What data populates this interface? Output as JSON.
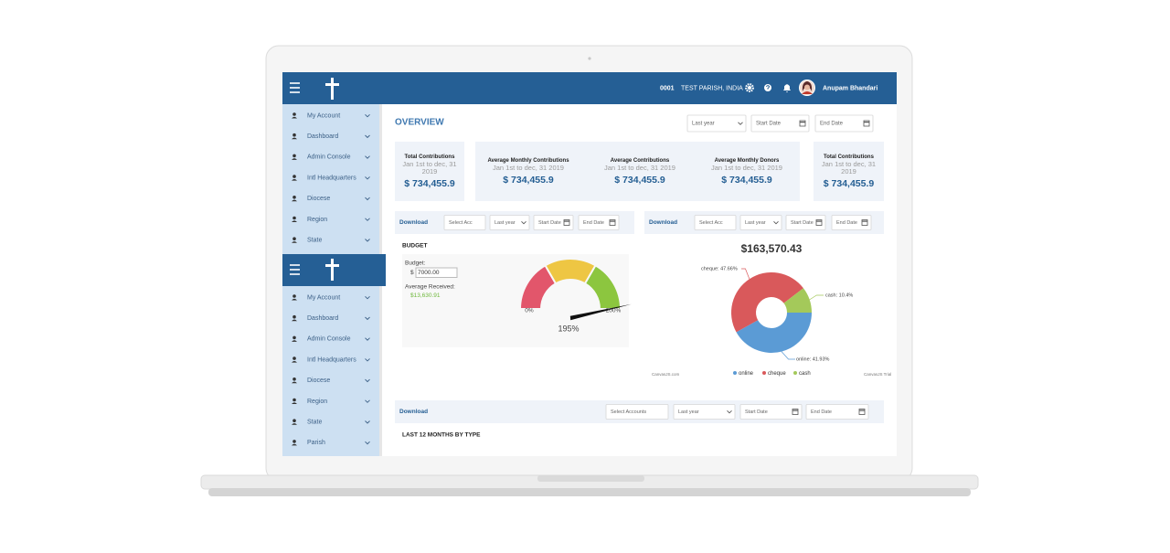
{
  "header": {
    "parish_code": "0001",
    "parish_name": "TEST PARISH, INDIA",
    "user": "Anupam Bhandari"
  },
  "sidebar": {
    "menu_1": [
      "My Account",
      "Dashboard",
      "Admin Console",
      "Intl Headquarters",
      "Diocese",
      "Region",
      "State"
    ],
    "menu_2": [
      "My Account",
      "Dashboard",
      "Admin Console",
      "Intl Headquarters",
      "Diocese",
      "Region",
      "State",
      "Parish"
    ]
  },
  "overview": {
    "title": "OVERVIEW",
    "period": "Last year",
    "start_date": "Start Date",
    "end_date": "End Date"
  },
  "stats": [
    {
      "title": "Total Contributions",
      "period": "Jan 1st to dec, 31 2019",
      "value": "$ 734,455.9"
    },
    {
      "title": "Average Monthly Contributions",
      "period": "Jan 1st to dec, 31 2019",
      "value": "$ 734,455.9"
    },
    {
      "title": "Average Contributions",
      "period": "Jan 1st to dec, 31 2019",
      "value": "$ 734,455.9"
    },
    {
      "title": "Average Monthly Donors",
      "period": "Jan 1st to dec, 31 2019",
      "value": "$ 734,455.9"
    },
    {
      "title": "Total Contributions",
      "period": "Jan 1st to dec, 31 2019",
      "value": "$ 734,455.9"
    }
  ],
  "filters": [
    {
      "download": "Download",
      "account": "Select Acc",
      "period": "Last year",
      "start": "Start Date",
      "end": "End Date"
    },
    {
      "download": "Download",
      "account": "Select Acc",
      "period": "Last year",
      "start": "Start Date",
      "end": "End Date"
    },
    {
      "download": "Download",
      "account": "Select Accounts",
      "period": "Last year",
      "start": "Start Date",
      "end": "End Date"
    }
  ],
  "budget": {
    "title": "BUDGET",
    "budget_label": "Budget:",
    "currency": "$",
    "budget_value": "7000.00",
    "received_label": "Average Received:",
    "received_value": "$13,630.91"
  },
  "gauge": {
    "type": "gauge",
    "value": 195,
    "value_label": "195%",
    "min": {
      "value": 0,
      "label": "0%"
    },
    "max": {
      "value": 200,
      "label": "200%"
    },
    "band_colors": [
      "#e2566b",
      "#eec643",
      "#8cc63f"
    ]
  },
  "donut": {
    "type": "pie",
    "title": "$163,570.43",
    "categories": [
      "online",
      "cheque",
      "cash"
    ],
    "values": [
      41.93,
      47.66,
      10.4
    ],
    "value_labels": [
      "online: 41.93%",
      "cheque: 47.66%",
      "cash: 10.4%"
    ],
    "colors": [
      "#5b9bd5",
      "#d9595b",
      "#a4c95a"
    ],
    "credits": [
      "CanvasJS.com",
      "CanvasJS Trial"
    ]
  },
  "section_title": "LAST 12 MONTHS BY TYPE"
}
